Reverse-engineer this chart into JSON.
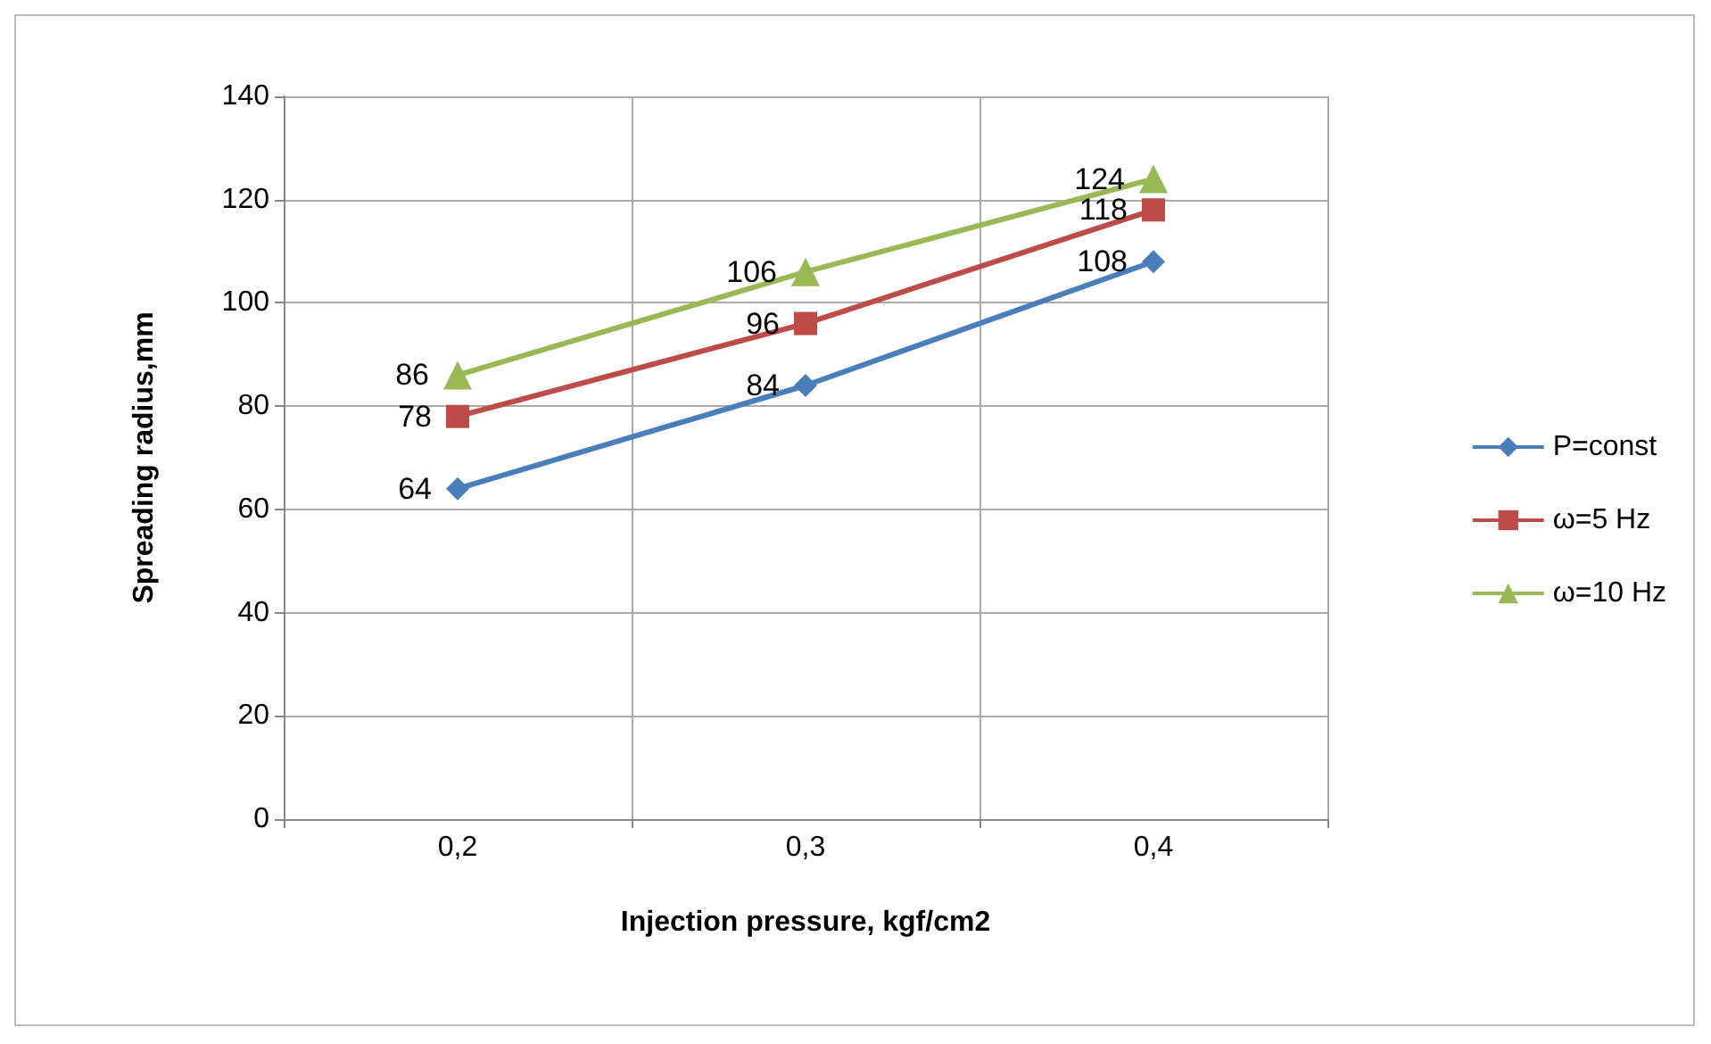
{
  "chart_data": {
    "type": "line",
    "xlabel": "Injection pressure, kgf/cm2",
    "ylabel": "Spreading radius,mm",
    "categories": [
      "0,2",
      "0,3",
      "0,4"
    ],
    "series": [
      {
        "name": "P=const",
        "color": "#4a7ebb",
        "marker": "diamond",
        "values": [
          64,
          84,
          108
        ]
      },
      {
        "name": "ω=5 Hz",
        "color": "#be4b48",
        "marker": "square",
        "values": [
          78,
          96,
          118
        ]
      },
      {
        "name": "ω=10 Hz",
        "color": "#98b954",
        "marker": "triangle",
        "values": [
          86,
          106,
          124
        ]
      }
    ],
    "ylim": [
      0,
      140
    ],
    "yticks": [
      0,
      20,
      40,
      60,
      80,
      100,
      120,
      140
    ],
    "grid": true,
    "legend": "right",
    "data_labels": true,
    "line_style": "solid"
  }
}
